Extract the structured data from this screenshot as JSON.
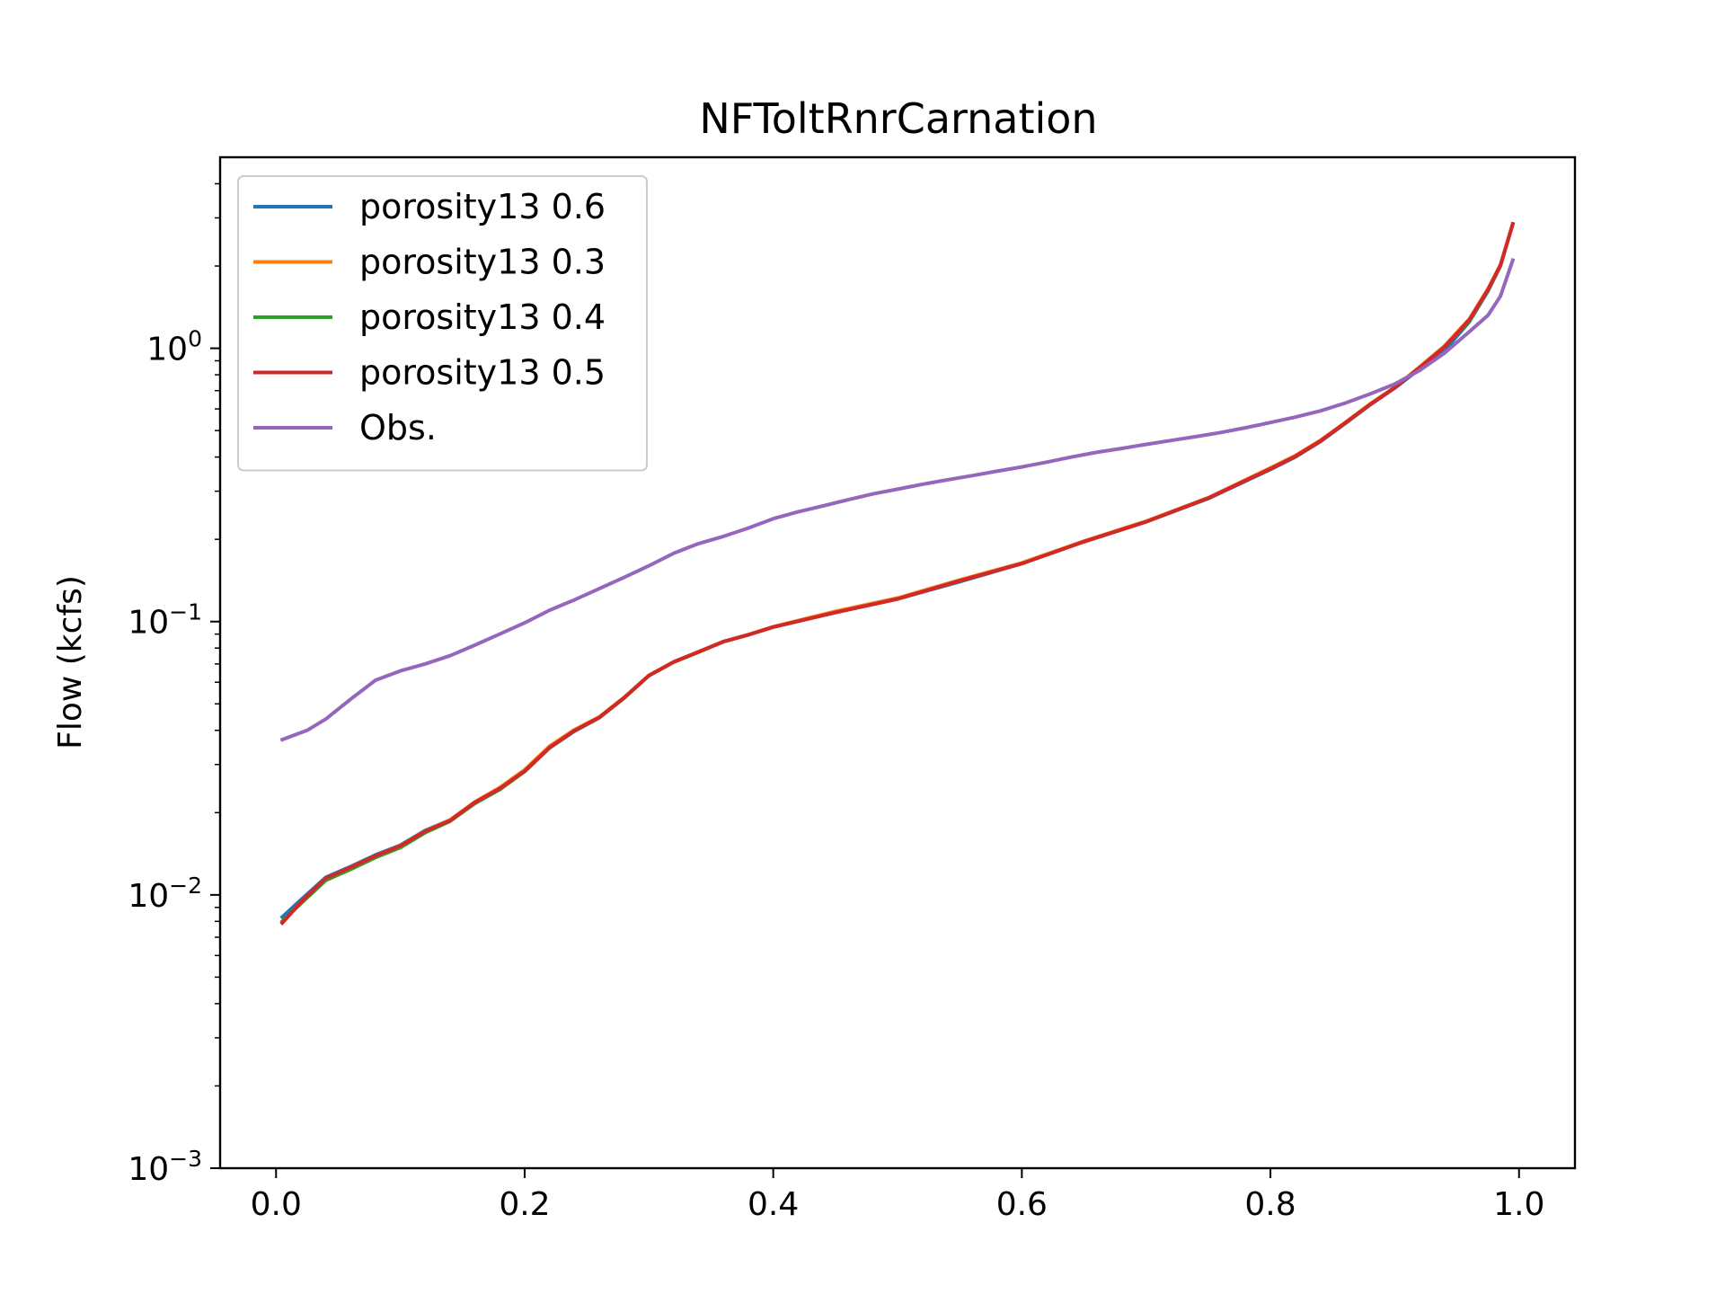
{
  "chart_data": {
    "type": "line",
    "title": "NFToltRnrCarnation",
    "xlabel": "",
    "ylabel": "Flow (kcfs)",
    "yscale": "log",
    "xlim": [
      -0.045,
      1.045
    ],
    "ylim": [
      0.001,
      5.0
    ],
    "grid": false,
    "legend_position": "top-left",
    "x_ticks": [
      {
        "value": 0.0,
        "label": "0.0"
      },
      {
        "value": 0.2,
        "label": "0.2"
      },
      {
        "value": 0.4,
        "label": "0.4"
      },
      {
        "value": 0.6,
        "label": "0.6"
      },
      {
        "value": 0.8,
        "label": "0.8"
      },
      {
        "value": 1.0,
        "label": "1.0"
      }
    ],
    "y_ticks": [
      {
        "value": 0.001,
        "base": "10",
        "exp": "−3"
      },
      {
        "value": 0.01,
        "base": "10",
        "exp": "−2"
      },
      {
        "value": 0.1,
        "base": "10",
        "exp": "−1"
      },
      {
        "value": 1.0,
        "base": "10",
        "exp": "0"
      }
    ],
    "series": [
      {
        "name": "porosity13 0.6",
        "color": "#1f77b4",
        "points": [
          [
            0.005,
            0.0083
          ],
          [
            0.02,
            0.0096
          ],
          [
            0.04,
            0.0116
          ],
          [
            0.06,
            0.0127
          ],
          [
            0.08,
            0.014
          ],
          [
            0.1,
            0.0152
          ],
          [
            0.12,
            0.0172
          ],
          [
            0.14,
            0.0188
          ],
          [
            0.16,
            0.0218
          ],
          [
            0.18,
            0.0245
          ],
          [
            0.2,
            0.0283
          ],
          [
            0.22,
            0.0345
          ],
          [
            0.24,
            0.0397
          ],
          [
            0.26,
            0.0445
          ],
          [
            0.28,
            0.0525
          ],
          [
            0.3,
            0.0635
          ],
          [
            0.32,
            0.0712
          ],
          [
            0.34,
            0.0775
          ],
          [
            0.36,
            0.0845
          ],
          [
            0.38,
            0.0895
          ],
          [
            0.4,
            0.0955
          ],
          [
            0.45,
            0.108
          ],
          [
            0.5,
            0.121
          ],
          [
            0.55,
            0.14
          ],
          [
            0.6,
            0.163
          ],
          [
            0.65,
            0.196
          ],
          [
            0.7,
            0.232
          ],
          [
            0.75,
            0.282
          ],
          [
            0.8,
            0.36
          ],
          [
            0.82,
            0.4
          ],
          [
            0.84,
            0.455
          ],
          [
            0.86,
            0.53
          ],
          [
            0.88,
            0.62
          ],
          [
            0.9,
            0.715
          ],
          [
            0.92,
            0.84
          ],
          [
            0.94,
            0.98
          ],
          [
            0.96,
            1.25
          ],
          [
            0.975,
            1.62
          ],
          [
            0.985,
            2.0
          ],
          [
            0.995,
            2.85
          ]
        ]
      },
      {
        "name": "porosity13 0.3",
        "color": "#ff7f0e",
        "points": [
          [
            0.005,
            0.0079
          ],
          [
            0.02,
            0.0094
          ],
          [
            0.04,
            0.0114
          ],
          [
            0.06,
            0.0126
          ],
          [
            0.08,
            0.0139
          ],
          [
            0.1,
            0.0151
          ],
          [
            0.12,
            0.0171
          ],
          [
            0.14,
            0.0188
          ],
          [
            0.16,
            0.0219
          ],
          [
            0.18,
            0.0247
          ],
          [
            0.2,
            0.0287
          ],
          [
            0.22,
            0.035
          ],
          [
            0.24,
            0.0402
          ],
          [
            0.26,
            0.0448
          ],
          [
            0.28,
            0.0528
          ],
          [
            0.3,
            0.0636
          ],
          [
            0.32,
            0.0713
          ],
          [
            0.34,
            0.0776
          ],
          [
            0.36,
            0.0846
          ],
          [
            0.38,
            0.0896
          ],
          [
            0.4,
            0.0957
          ],
          [
            0.45,
            0.109
          ],
          [
            0.5,
            0.122
          ],
          [
            0.55,
            0.142
          ],
          [
            0.6,
            0.164
          ],
          [
            0.65,
            0.197
          ],
          [
            0.7,
            0.233
          ],
          [
            0.75,
            0.284
          ],
          [
            0.8,
            0.365
          ],
          [
            0.82,
            0.405
          ],
          [
            0.84,
            0.46
          ],
          [
            0.86,
            0.535
          ],
          [
            0.88,
            0.625
          ],
          [
            0.9,
            0.72
          ],
          [
            0.92,
            0.855
          ],
          [
            0.94,
            1.02
          ],
          [
            0.96,
            1.28
          ],
          [
            0.975,
            1.65
          ],
          [
            0.985,
            2.02
          ],
          [
            0.995,
            2.85
          ]
        ]
      },
      {
        "name": "porosity13 0.4",
        "color": "#2ca02c",
        "points": [
          [
            0.005,
            0.008
          ],
          [
            0.02,
            0.0093
          ],
          [
            0.04,
            0.0113
          ],
          [
            0.06,
            0.0124
          ],
          [
            0.08,
            0.0137
          ],
          [
            0.1,
            0.0149
          ],
          [
            0.12,
            0.0169
          ],
          [
            0.14,
            0.0186
          ],
          [
            0.16,
            0.0216
          ],
          [
            0.18,
            0.0243
          ],
          [
            0.2,
            0.0283
          ],
          [
            0.22,
            0.0345
          ],
          [
            0.24,
            0.0398
          ],
          [
            0.26,
            0.0445
          ],
          [
            0.28,
            0.0525
          ],
          [
            0.3,
            0.0634
          ],
          [
            0.32,
            0.0711
          ],
          [
            0.34,
            0.0774
          ],
          [
            0.36,
            0.0844
          ],
          [
            0.38,
            0.0894
          ],
          [
            0.4,
            0.0955
          ],
          [
            0.45,
            0.108
          ],
          [
            0.5,
            0.121
          ],
          [
            0.55,
            0.141
          ],
          [
            0.6,
            0.163
          ],
          [
            0.65,
            0.196
          ],
          [
            0.7,
            0.232
          ],
          [
            0.75,
            0.283
          ],
          [
            0.8,
            0.362
          ],
          [
            0.82,
            0.402
          ],
          [
            0.84,
            0.457
          ],
          [
            0.86,
            0.532
          ],
          [
            0.88,
            0.622
          ],
          [
            0.9,
            0.718
          ],
          [
            0.92,
            0.85
          ],
          [
            0.94,
            1.01
          ],
          [
            0.96,
            1.26
          ],
          [
            0.975,
            1.63
          ],
          [
            0.985,
            2.0
          ],
          [
            0.995,
            2.85
          ]
        ]
      },
      {
        "name": "porosity13 0.5",
        "color": "#d62728",
        "points": [
          [
            0.005,
            0.0079
          ],
          [
            0.02,
            0.0094
          ],
          [
            0.04,
            0.0115
          ],
          [
            0.06,
            0.0126
          ],
          [
            0.08,
            0.0139
          ],
          [
            0.1,
            0.0151
          ],
          [
            0.12,
            0.0171
          ],
          [
            0.14,
            0.0187
          ],
          [
            0.16,
            0.0218
          ],
          [
            0.18,
            0.0245
          ],
          [
            0.2,
            0.0284
          ],
          [
            0.22,
            0.0346
          ],
          [
            0.24,
            0.0399
          ],
          [
            0.26,
            0.0446
          ],
          [
            0.28,
            0.0526
          ],
          [
            0.3,
            0.0635
          ],
          [
            0.32,
            0.0712
          ],
          [
            0.34,
            0.0775
          ],
          [
            0.36,
            0.0845
          ],
          [
            0.38,
            0.0895
          ],
          [
            0.4,
            0.0956
          ],
          [
            0.45,
            0.108
          ],
          [
            0.5,
            0.121
          ],
          [
            0.55,
            0.141
          ],
          [
            0.6,
            0.163
          ],
          [
            0.65,
            0.196
          ],
          [
            0.7,
            0.232
          ],
          [
            0.75,
            0.283
          ],
          [
            0.8,
            0.362
          ],
          [
            0.82,
            0.402
          ],
          [
            0.84,
            0.457
          ],
          [
            0.86,
            0.532
          ],
          [
            0.88,
            0.622
          ],
          [
            0.9,
            0.718
          ],
          [
            0.92,
            0.85
          ],
          [
            0.94,
            1.01
          ],
          [
            0.96,
            1.27
          ],
          [
            0.975,
            1.64
          ],
          [
            0.985,
            2.01
          ],
          [
            0.995,
            2.85
          ]
        ]
      },
      {
        "name": "Obs.",
        "color": "#9467bd",
        "points": [
          [
            0.005,
            0.037
          ],
          [
            0.025,
            0.04
          ],
          [
            0.04,
            0.044
          ],
          [
            0.06,
            0.052
          ],
          [
            0.08,
            0.061
          ],
          [
            0.1,
            0.066
          ],
          [
            0.12,
            0.07
          ],
          [
            0.14,
            0.075
          ],
          [
            0.16,
            0.082
          ],
          [
            0.18,
            0.09
          ],
          [
            0.2,
            0.099
          ],
          [
            0.22,
            0.11
          ],
          [
            0.24,
            0.12
          ],
          [
            0.26,
            0.132
          ],
          [
            0.28,
            0.145
          ],
          [
            0.3,
            0.16
          ],
          [
            0.32,
            0.178
          ],
          [
            0.34,
            0.193
          ],
          [
            0.36,
            0.205
          ],
          [
            0.38,
            0.22
          ],
          [
            0.4,
            0.238
          ],
          [
            0.42,
            0.252
          ],
          [
            0.44,
            0.265
          ],
          [
            0.46,
            0.279
          ],
          [
            0.48,
            0.293
          ],
          [
            0.5,
            0.305
          ],
          [
            0.52,
            0.318
          ],
          [
            0.54,
            0.33
          ],
          [
            0.56,
            0.342
          ],
          [
            0.58,
            0.355
          ],
          [
            0.6,
            0.368
          ],
          [
            0.62,
            0.383
          ],
          [
            0.64,
            0.4
          ],
          [
            0.66,
            0.416
          ],
          [
            0.68,
            0.43
          ],
          [
            0.7,
            0.445
          ],
          [
            0.72,
            0.46
          ],
          [
            0.74,
            0.475
          ],
          [
            0.76,
            0.492
          ],
          [
            0.78,
            0.512
          ],
          [
            0.8,
            0.535
          ],
          [
            0.82,
            0.56
          ],
          [
            0.84,
            0.59
          ],
          [
            0.86,
            0.63
          ],
          [
            0.88,
            0.68
          ],
          [
            0.9,
            0.74
          ],
          [
            0.92,
            0.83
          ],
          [
            0.94,
            0.96
          ],
          [
            0.96,
            1.15
          ],
          [
            0.975,
            1.32
          ],
          [
            0.985,
            1.55
          ],
          [
            0.995,
            2.1
          ]
        ]
      }
    ]
  }
}
